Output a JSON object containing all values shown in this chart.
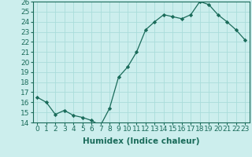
{
  "x": [
    0,
    1,
    2,
    3,
    4,
    5,
    6,
    7,
    8,
    9,
    10,
    11,
    12,
    13,
    14,
    15,
    16,
    17,
    18,
    19,
    20,
    21,
    22,
    23
  ],
  "y": [
    16.5,
    16.0,
    14.8,
    15.2,
    14.7,
    14.5,
    14.2,
    13.7,
    15.4,
    18.5,
    19.5,
    21.0,
    23.2,
    24.0,
    24.7,
    24.5,
    24.3,
    24.7,
    26.0,
    25.7,
    24.7,
    24.0,
    23.2,
    22.2
  ],
  "xlabel": "Humidex (Indice chaleur)",
  "ylim": [
    14,
    26
  ],
  "xlim": [
    -0.5,
    23.5
  ],
  "yticks": [
    14,
    15,
    16,
    17,
    18,
    19,
    20,
    21,
    22,
    23,
    24,
    25,
    26
  ],
  "xticks": [
    0,
    1,
    2,
    3,
    4,
    5,
    6,
    7,
    8,
    9,
    10,
    11,
    12,
    13,
    14,
    15,
    16,
    17,
    18,
    19,
    20,
    21,
    22,
    23
  ],
  "line_color": "#1a6b5a",
  "marker": "D",
  "marker_size": 2.2,
  "bg_color": "#cceeed",
  "grid_color": "#aaddda",
  "xlabel_fontsize": 7.5,
  "tick_fontsize": 6.5
}
